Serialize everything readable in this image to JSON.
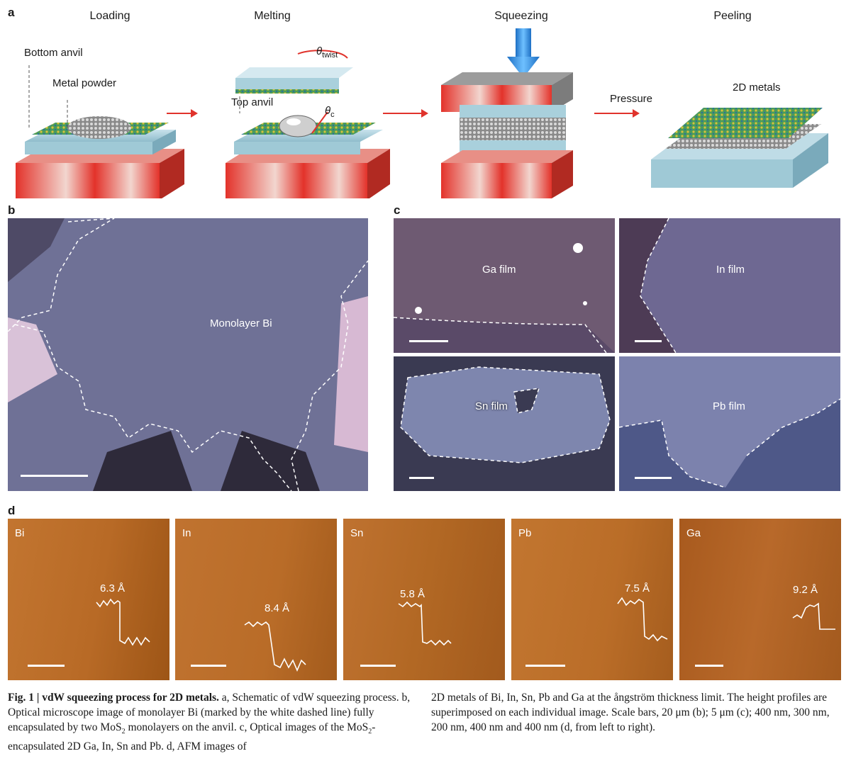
{
  "panel_a": {
    "label": "a",
    "stages": [
      "Loading",
      "Melting",
      "Squeezing",
      "Peeling"
    ],
    "annotations": {
      "bottom_anvil": "Bottom anvil",
      "metal_powder": "Metal powder",
      "top_anvil": "Top anvil",
      "theta_twist": "θ",
      "theta_twist_sub": "twist",
      "theta_c": "θ",
      "theta_c_sub": "c",
      "pressure": "Pressure",
      "metals_2d": "2D metals"
    }
  },
  "panel_b": {
    "label": "b",
    "text": "Monolayer Bi"
  },
  "panel_c": {
    "label": "c",
    "films": [
      "Ga film",
      "In film",
      "Sn film",
      "Pb film"
    ]
  },
  "panel_d": {
    "label": "d",
    "images": [
      {
        "metal": "Bi",
        "step": "6.3 Å"
      },
      {
        "metal": "In",
        "step": "8.4 Å"
      },
      {
        "metal": "Sn",
        "step": "5.8 Å"
      },
      {
        "metal": "Pb",
        "step": "7.5 Å"
      },
      {
        "metal": "Ga",
        "step": "9.2 Å"
      }
    ]
  },
  "caption": {
    "title": "Fig. 1 | vdW squeezing process for 2D metals.",
    "col1": [
      " a, Schematic of vdW squeezing process. b, Optical microscope image of monolayer Bi (marked by the white dashed line) fully encapsulated by two MoS",
      "2",
      " monolayers on the anvil. c, Optical images of the MoS",
      "2",
      "-encapsulated 2D Ga, In, Sn and Pb. d, AFM images of"
    ],
    "col2": "2D metals of Bi, In, Sn, Pb and Ga at the ångström thickness limit. The height profiles are superimposed on each individual image. Scale bars, 20 μm (b); 5 μm (c); 400 nm, 300 nm, 200 nm, 400 nm and 400 nm (d, from left to right)."
  },
  "colors": {
    "arrow": "#e0332c",
    "afm": "#b8692a",
    "optical": "#6e6f97"
  }
}
